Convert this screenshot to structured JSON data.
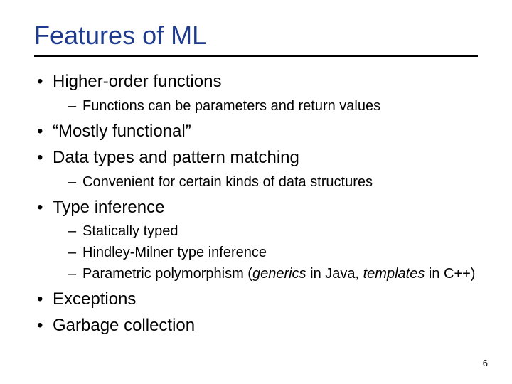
{
  "title": "Features of ML",
  "colors": {
    "title": "#1f3b8f",
    "underline": "#000000",
    "text": "#000000",
    "background": "#ffffff"
  },
  "typography": {
    "title_fontsize": 36,
    "level1_fontsize": 24,
    "level2_fontsize": 20,
    "pagenum_fontsize": 13,
    "font_family": "Arial"
  },
  "bullets": {
    "b1": "Higher-order functions",
    "b1_sub1": "Functions can be parameters and return values",
    "b2": "“Mostly functional”",
    "b3": "Data types and pattern matching",
    "b3_sub1": "Convenient for certain kinds of data structures",
    "b4": "Type inference",
    "b4_sub1": "Statically typed",
    "b4_sub2": "Hindley-Milner type inference",
    "b4_sub3_pre": "Parametric polymorphism (",
    "b4_sub3_i1": "generics",
    "b4_sub3_mid": " in Java, ",
    "b4_sub3_i2": "templates",
    "b4_sub3_post": " in C++)",
    "b5": "Exceptions",
    "b5_sub1": "Garbage collection"
  },
  "page_number": "6"
}
